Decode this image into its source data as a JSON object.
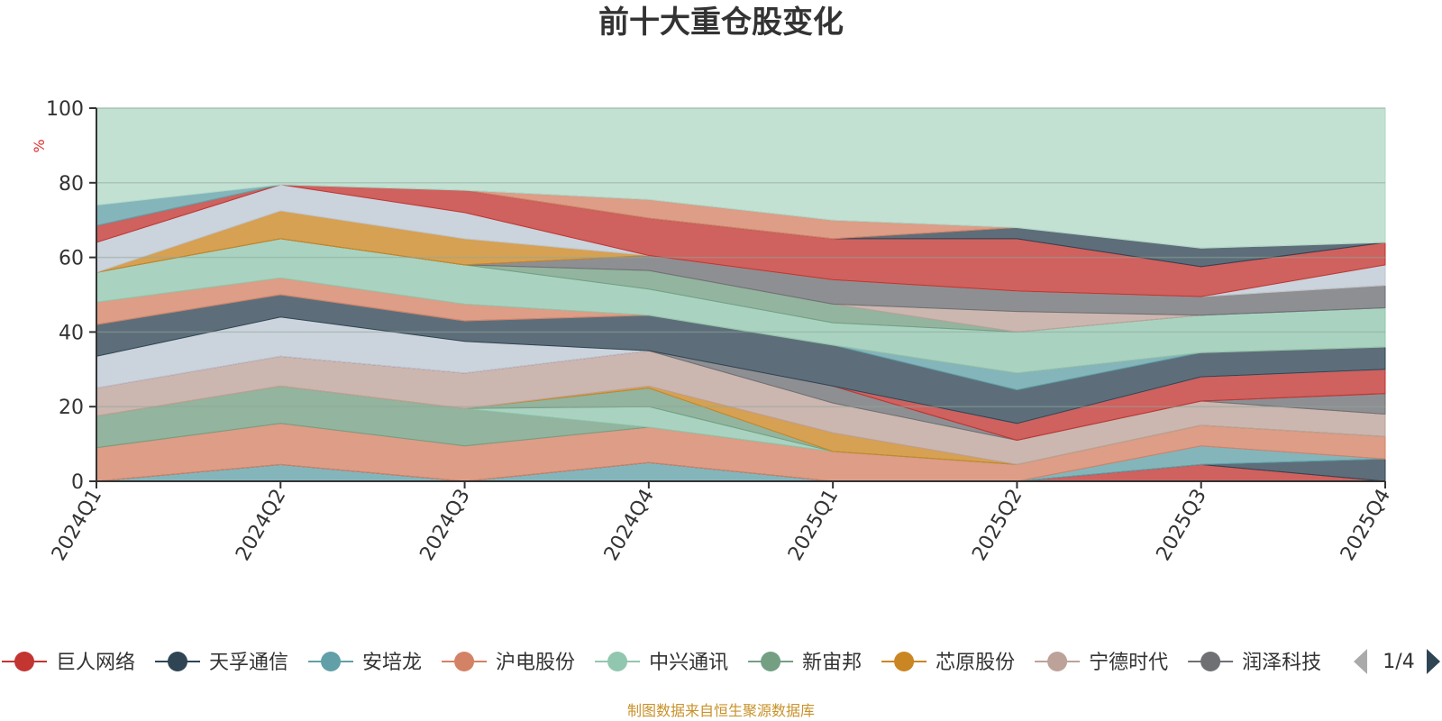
{
  "chart_data": {
    "type": "area",
    "stacked": true,
    "title": "前十大重仓股变化",
    "ylabel": "%",
    "ylim": [
      0,
      100
    ],
    "yticks": [
      0,
      20,
      40,
      60,
      80,
      100
    ],
    "categories": [
      "2024Q1",
      "2024Q2",
      "2024Q3",
      "2024Q4",
      "2025Q1",
      "2025Q2",
      "2025Q3",
      "2025Q4"
    ],
    "grid": true,
    "legend_position": "bottom",
    "legend_page": "1/4",
    "source": "制图数据来自恒生聚源数据库",
    "legend": [
      {
        "name": "巨人网络",
        "color": "#c23531"
      },
      {
        "name": "天孚通信",
        "color": "#2f4554"
      },
      {
        "name": "安培龙",
        "color": "#61a0a8"
      },
      {
        "name": "沪电股份",
        "color": "#d48265"
      },
      {
        "name": "中兴通讯",
        "color": "#91c7ae"
      },
      {
        "name": "新宙邦",
        "color": "#749f83"
      },
      {
        "name": "芯原股份",
        "color": "#ca8622"
      },
      {
        "name": "宁德时代",
        "color": "#bda29a"
      },
      {
        "name": "润泽科技",
        "color": "#6e7074"
      }
    ],
    "layers": [
      {
        "color": "#61a0a8",
        "values": [
          0,
          4.5,
          0,
          5,
          0,
          0,
          0,
          0
        ]
      },
      {
        "color": "#c23531",
        "values": [
          0,
          0,
          0,
          0,
          0,
          0,
          4.5,
          0
        ]
      },
      {
        "color": "#2f4554",
        "values": [
          0,
          0,
          0,
          0,
          0,
          0,
          0,
          6
        ]
      },
      {
        "color": "#61a0a8",
        "values": [
          0,
          0,
          0,
          0,
          0,
          0,
          5,
          0
        ]
      },
      {
        "color": "#d48265",
        "values": [
          9,
          11,
          9.5,
          9.5,
          8,
          4.5,
          5.5,
          6
        ]
      },
      {
        "color": "#749f83",
        "values": [
          8.5,
          10,
          10,
          0,
          0,
          0,
          0,
          0
        ]
      },
      {
        "color": "#91c7ae",
        "values": [
          0,
          0,
          0,
          5.5,
          0,
          0,
          0,
          0
        ]
      },
      {
        "color": "#749f83",
        "values": [
          0,
          0,
          0,
          5,
          0,
          0,
          0,
          0
        ]
      },
      {
        "color": "#ca8622",
        "values": [
          0,
          0,
          0,
          0.5,
          5,
          0,
          0,
          0
        ]
      },
      {
        "color": "#bda29a",
        "values": [
          7.5,
          8,
          9.5,
          9.5,
          8,
          6.5,
          6.5,
          6
        ]
      },
      {
        "color": "#6e7074",
        "values": [
          0,
          0,
          0,
          0,
          4.5,
          0,
          0,
          5.5
        ]
      },
      {
        "color": "#c23531",
        "values": [
          0,
          0,
          0,
          0,
          0,
          4.5,
          6.5,
          6.5
        ]
      },
      {
        "color": "#bcc6d2",
        "values": [
          8.5,
          10.5,
          8.5,
          0,
          0,
          0,
          0,
          0
        ]
      },
      {
        "color": "#2f4554",
        "values": [
          8.5,
          6,
          5.5,
          9.5,
          11,
          9,
          6.5,
          6
        ]
      },
      {
        "color": "#61a0a8",
        "values": [
          0,
          0,
          0,
          0,
          0,
          4.5,
          0,
          0
        ]
      },
      {
        "color": "#d48265",
        "values": [
          6,
          4.5,
          4.5,
          0,
          0,
          0,
          0,
          0
        ]
      },
      {
        "color": "#91c7ae",
        "values": [
          8,
          10.5,
          10.5,
          7,
          6,
          11,
          10,
          10.5
        ]
      },
      {
        "color": "#749f83",
        "values": [
          0,
          0,
          0,
          5,
          5,
          0,
          0,
          0
        ]
      },
      {
        "color": "#bda29a",
        "values": [
          0,
          0,
          0,
          0,
          0,
          5.5,
          0,
          0
        ]
      },
      {
        "color": "#6e7074",
        "values": [
          0,
          0,
          0,
          4,
          6.5,
          5.5,
          5,
          6
        ]
      },
      {
        "color": "#ca8622",
        "values": [
          0,
          7.5,
          7,
          0,
          0,
          0,
          0,
          0
        ]
      },
      {
        "color": "#bcc6d2",
        "values": [
          8,
          7,
          7,
          0,
          0,
          0,
          0,
          5.5
        ]
      },
      {
        "color": "#c23531",
        "values": [
          4.5,
          0,
          6,
          10,
          11,
          14,
          8,
          6
        ]
      },
      {
        "color": "#2f4554",
        "values": [
          0,
          0,
          0,
          0,
          0,
          3,
          5,
          0
        ]
      },
      {
        "color": "#d48265",
        "values": [
          0,
          0,
          0,
          5,
          5,
          0,
          0,
          0
        ]
      },
      {
        "color": "#61a0a8",
        "values": [
          5.5,
          0,
          0,
          0,
          0,
          0,
          0,
          0
        ]
      }
    ],
    "filler_color": "#b2d8c6"
  }
}
